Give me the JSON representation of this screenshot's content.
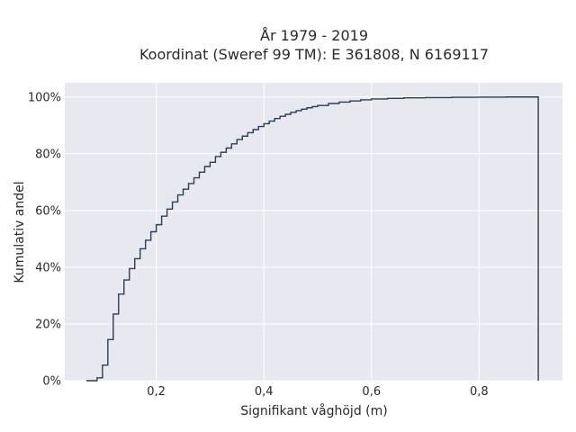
{
  "chart_data": {
    "type": "line",
    "step": true,
    "title": "År 1979 - 2019",
    "subtitle": "Koordinat (Sweref 99 TM): E 361808, N 6169117",
    "xlabel": "Signifikant våghöjd (m)",
    "ylabel": "Kumulativ andel",
    "xlim": [
      0.03,
      0.955
    ],
    "ylim": [
      0,
      1.05
    ],
    "x_ticks": [
      0.2,
      0.4,
      0.6,
      0.8
    ],
    "x_tick_labels": [
      "0,2",
      "0,4",
      "0,6",
      "0,8"
    ],
    "y_ticks": [
      0,
      0.2,
      0.4,
      0.6,
      0.8,
      1.0
    ],
    "y_tick_labels": [
      "0%",
      "20%",
      "40%",
      "60%",
      "80%",
      "100%"
    ],
    "grid": true,
    "line_color": "#2c3e50",
    "background_color": "#e8e8f0",
    "x": [
      0.07,
      0.09,
      0.1,
      0.11,
      0.12,
      0.13,
      0.14,
      0.15,
      0.16,
      0.17,
      0.18,
      0.19,
      0.2,
      0.21,
      0.22,
      0.23,
      0.24,
      0.25,
      0.26,
      0.27,
      0.28,
      0.29,
      0.3,
      0.31,
      0.32,
      0.33,
      0.34,
      0.35,
      0.36,
      0.37,
      0.38,
      0.39,
      0.4,
      0.41,
      0.42,
      0.43,
      0.44,
      0.45,
      0.46,
      0.47,
      0.48,
      0.49,
      0.5,
      0.52,
      0.54,
      0.56,
      0.58,
      0.6,
      0.63,
      0.66,
      0.7,
      0.75,
      0.8,
      0.85,
      0.91
    ],
    "y": [
      0.0,
      0.01,
      0.055,
      0.145,
      0.235,
      0.305,
      0.355,
      0.395,
      0.43,
      0.465,
      0.495,
      0.525,
      0.55,
      0.58,
      0.605,
      0.63,
      0.655,
      0.675,
      0.695,
      0.715,
      0.735,
      0.755,
      0.77,
      0.79,
      0.805,
      0.82,
      0.835,
      0.85,
      0.862,
      0.874,
      0.885,
      0.896,
      0.906,
      0.915,
      0.924,
      0.932,
      0.939,
      0.946,
      0.952,
      0.957,
      0.962,
      0.966,
      0.97,
      0.977,
      0.982,
      0.986,
      0.99,
      0.993,
      0.995,
      0.997,
      0.998,
      0.999,
      0.9995,
      1.0,
      1.0
    ]
  }
}
